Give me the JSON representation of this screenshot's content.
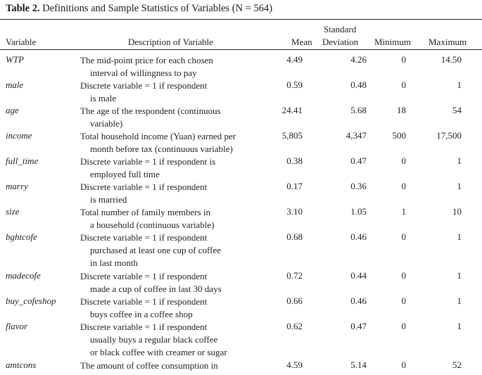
{
  "caption": {
    "label": "Table 2.",
    "text": "Definitions and Sample Statistics of Variables (N = 564)"
  },
  "headers": {
    "variable": "Variable",
    "description": "Description of Variable",
    "mean": "Mean",
    "sd_top": "Standard",
    "sd_bottom": "Deviation",
    "minimum": "Minimum",
    "maximum": "Maximum"
  },
  "rows": [
    {
      "var": "WTP",
      "desc": [
        "The mid-point price for each chosen",
        "interval of willingness to pay"
      ],
      "mean": "4.49",
      "sd": "4.26",
      "min": "0",
      "max": "14.50"
    },
    {
      "var": "male",
      "desc": [
        "Discrete variable = 1 if respondent",
        "is male"
      ],
      "mean": "0.59",
      "sd": "0.48",
      "min": "0",
      "max": "1"
    },
    {
      "var": "age",
      "desc": [
        "The age of the respondent (continuous",
        "variable)"
      ],
      "mean": "24.41",
      "sd": "5.68",
      "min": "18",
      "max": "54"
    },
    {
      "var": "income",
      "desc": [
        "Total household income (Yuan) earned per",
        "month before tax (continuous variable)"
      ],
      "mean": "5,805",
      "sd": "4,347",
      "min": "500",
      "max": "17,500"
    },
    {
      "var": "full_time",
      "desc": [
        "Discrete variable = 1 if respondent is",
        "employed full time"
      ],
      "mean": "0.38",
      "sd": "0.47",
      "min": "0",
      "max": "1"
    },
    {
      "var": "marry",
      "desc": [
        "Discrete variable = 1 if respondent",
        "is married"
      ],
      "mean": "0.17",
      "sd": "0.36",
      "min": "0",
      "max": "1"
    },
    {
      "var": "size",
      "desc": [
        "Total number of family members in",
        "a household (continuous variable)"
      ],
      "mean": "3.10",
      "sd": "1.05",
      "min": "1",
      "max": "10"
    },
    {
      "var": "bghtcofe",
      "desc": [
        "Discrete variable = 1 if respondent",
        "purchased at least one cup of coffee",
        "in last month"
      ],
      "mean": "0.68",
      "sd": "0.46",
      "min": "0",
      "max": "1"
    },
    {
      "var": "madecofe",
      "desc": [
        "Discrete variable = 1 if respondent",
        "made a cup of coffee in last 30 days"
      ],
      "mean": "0.72",
      "sd": "0.44",
      "min": "0",
      "max": "1"
    },
    {
      "var": "buy_cofeshop",
      "desc": [
        "Discrete variable = 1 if respondent",
        "buys coffee in a coffee shop"
      ],
      "mean": "0.66",
      "sd": "0.46",
      "min": "0",
      "max": "1"
    },
    {
      "var": "flavor",
      "desc": [
        "Discrete variable = 1 if respondent",
        "usually buys a regular black coffee",
        "or black coffee with creamer or sugar"
      ],
      "mean": "0.62",
      "sd": "0.47",
      "min": "0",
      "max": "1"
    },
    {
      "var": "amtcons",
      "desc": [
        "The amount of coffee consumption in"
      ],
      "mean": "4.59",
      "sd": "5.14",
      "min": "0",
      "max": "52"
    }
  ]
}
